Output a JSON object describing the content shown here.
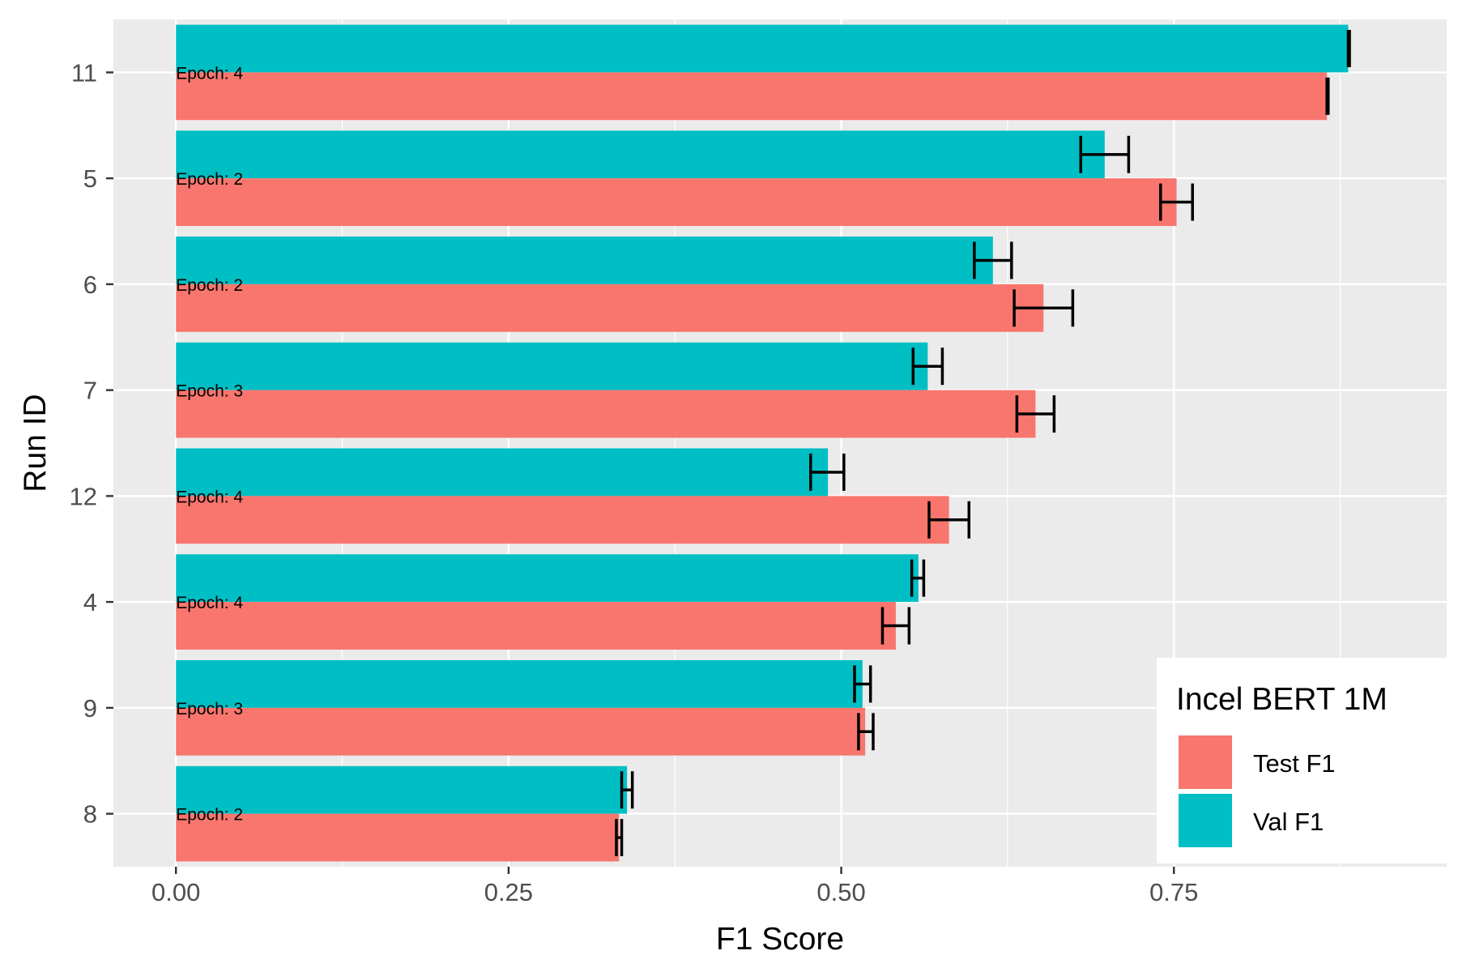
{
  "chart_data": {
    "type": "bar",
    "orientation": "horizontal",
    "title": "",
    "xlabel": "F1 Score",
    "ylabel": "Run ID",
    "xlim": [
      -0.047,
      0.955
    ],
    "xticks": [
      0.0,
      0.25,
      0.5,
      0.75
    ],
    "xtick_labels": [
      "0.00",
      "0.25",
      "0.50",
      "0.75"
    ],
    "categories": [
      "11",
      "5",
      "6",
      "7",
      "12",
      "4",
      "9",
      "8"
    ],
    "annotations": [
      "Epoch: 4",
      "Epoch: 2",
      "Epoch: 2",
      "Epoch: 3",
      "Epoch: 4",
      "Epoch: 4",
      "Epoch: 3",
      "Epoch: 2"
    ],
    "grid": true,
    "legend": {
      "title": "Incel BERT 1M",
      "position": "bottom-right",
      "entries": [
        "Test F1",
        "Val F1"
      ]
    },
    "series": [
      {
        "name": "Val F1",
        "color": "#00BFC4",
        "values": [
          0.881,
          0.698,
          0.614,
          0.565,
          0.49,
          0.558,
          0.516,
          0.339
        ],
        "error_low": [
          0.881,
          0.68,
          0.6,
          0.554,
          0.477,
          0.553,
          0.51,
          0.335
        ],
        "error_high": [
          0.882,
          0.716,
          0.628,
          0.576,
          0.502,
          0.562,
          0.522,
          0.343
        ]
      },
      {
        "name": "Test F1",
        "color": "#F8766D",
        "values": [
          0.865,
          0.752,
          0.652,
          0.646,
          0.581,
          0.541,
          0.518,
          0.333
        ],
        "error_low": [
          0.865,
          0.74,
          0.63,
          0.632,
          0.566,
          0.531,
          0.513,
          0.331
        ],
        "error_high": [
          0.866,
          0.764,
          0.674,
          0.66,
          0.596,
          0.551,
          0.524,
          0.335
        ]
      }
    ]
  }
}
